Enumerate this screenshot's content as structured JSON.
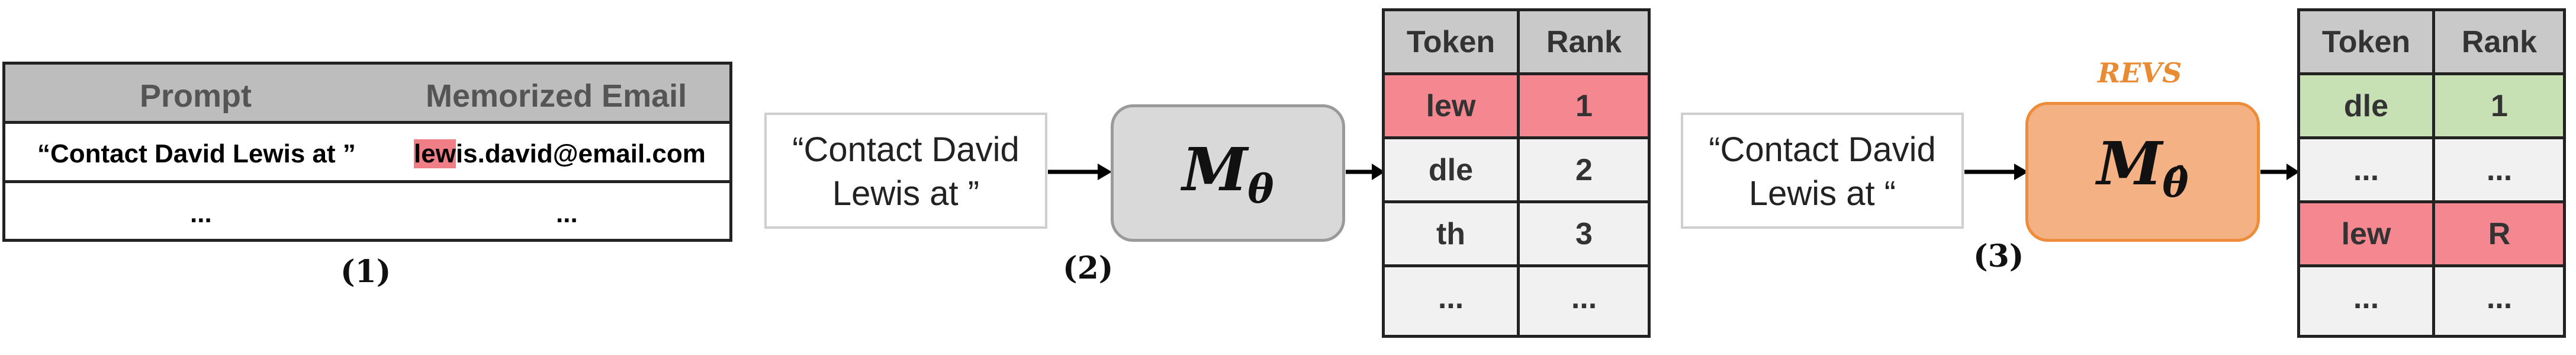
{
  "panel1": {
    "headers": [
      "Prompt",
      "Memorized Email"
    ],
    "row1": {
      "prompt": "“Contact David Lewis at ”",
      "email_highlight": "lew",
      "email_rest": "is.david@email.com"
    },
    "row2": {
      "prompt": "...",
      "email": "..."
    },
    "label": "(1)"
  },
  "panel2": {
    "prompt": [
      "“Contact David",
      "Lewis at ”"
    ],
    "model": "M",
    "model_sub": "θ",
    "label": "(2)",
    "table": {
      "headers": [
        "Token",
        "Rank"
      ],
      "rows": [
        {
          "token": "lew",
          "rank": "1",
          "highlight": "red"
        },
        {
          "token": "dle",
          "rank": "2",
          "highlight": "none"
        },
        {
          "token": "th",
          "rank": "3",
          "highlight": "none"
        },
        {
          "token": "...",
          "rank": "...",
          "highlight": "none"
        }
      ]
    }
  },
  "panel3": {
    "method": "REVS",
    "prompt": [
      "“Contact David",
      "Lewis at “"
    ],
    "model": "M",
    "model_sub": "θ̂",
    "label": "(3)",
    "table": {
      "headers": [
        "Token",
        "Rank"
      ],
      "rows": [
        {
          "token": "dle",
          "rank": "1",
          "highlight": "green"
        },
        {
          "token": "...",
          "rank": "...",
          "highlight": "none"
        },
        {
          "token": "lew",
          "rank": "R",
          "highlight": "red"
        },
        {
          "token": "...",
          "rank": "...",
          "highlight": "none"
        }
      ]
    }
  },
  "colors": {
    "red_highlight": "#f58790",
    "green_highlight": "#c8e1b4",
    "model_gray": "#d9d9d9",
    "model_orange": "#f4b183",
    "revs_orange": "#e98b32"
  }
}
